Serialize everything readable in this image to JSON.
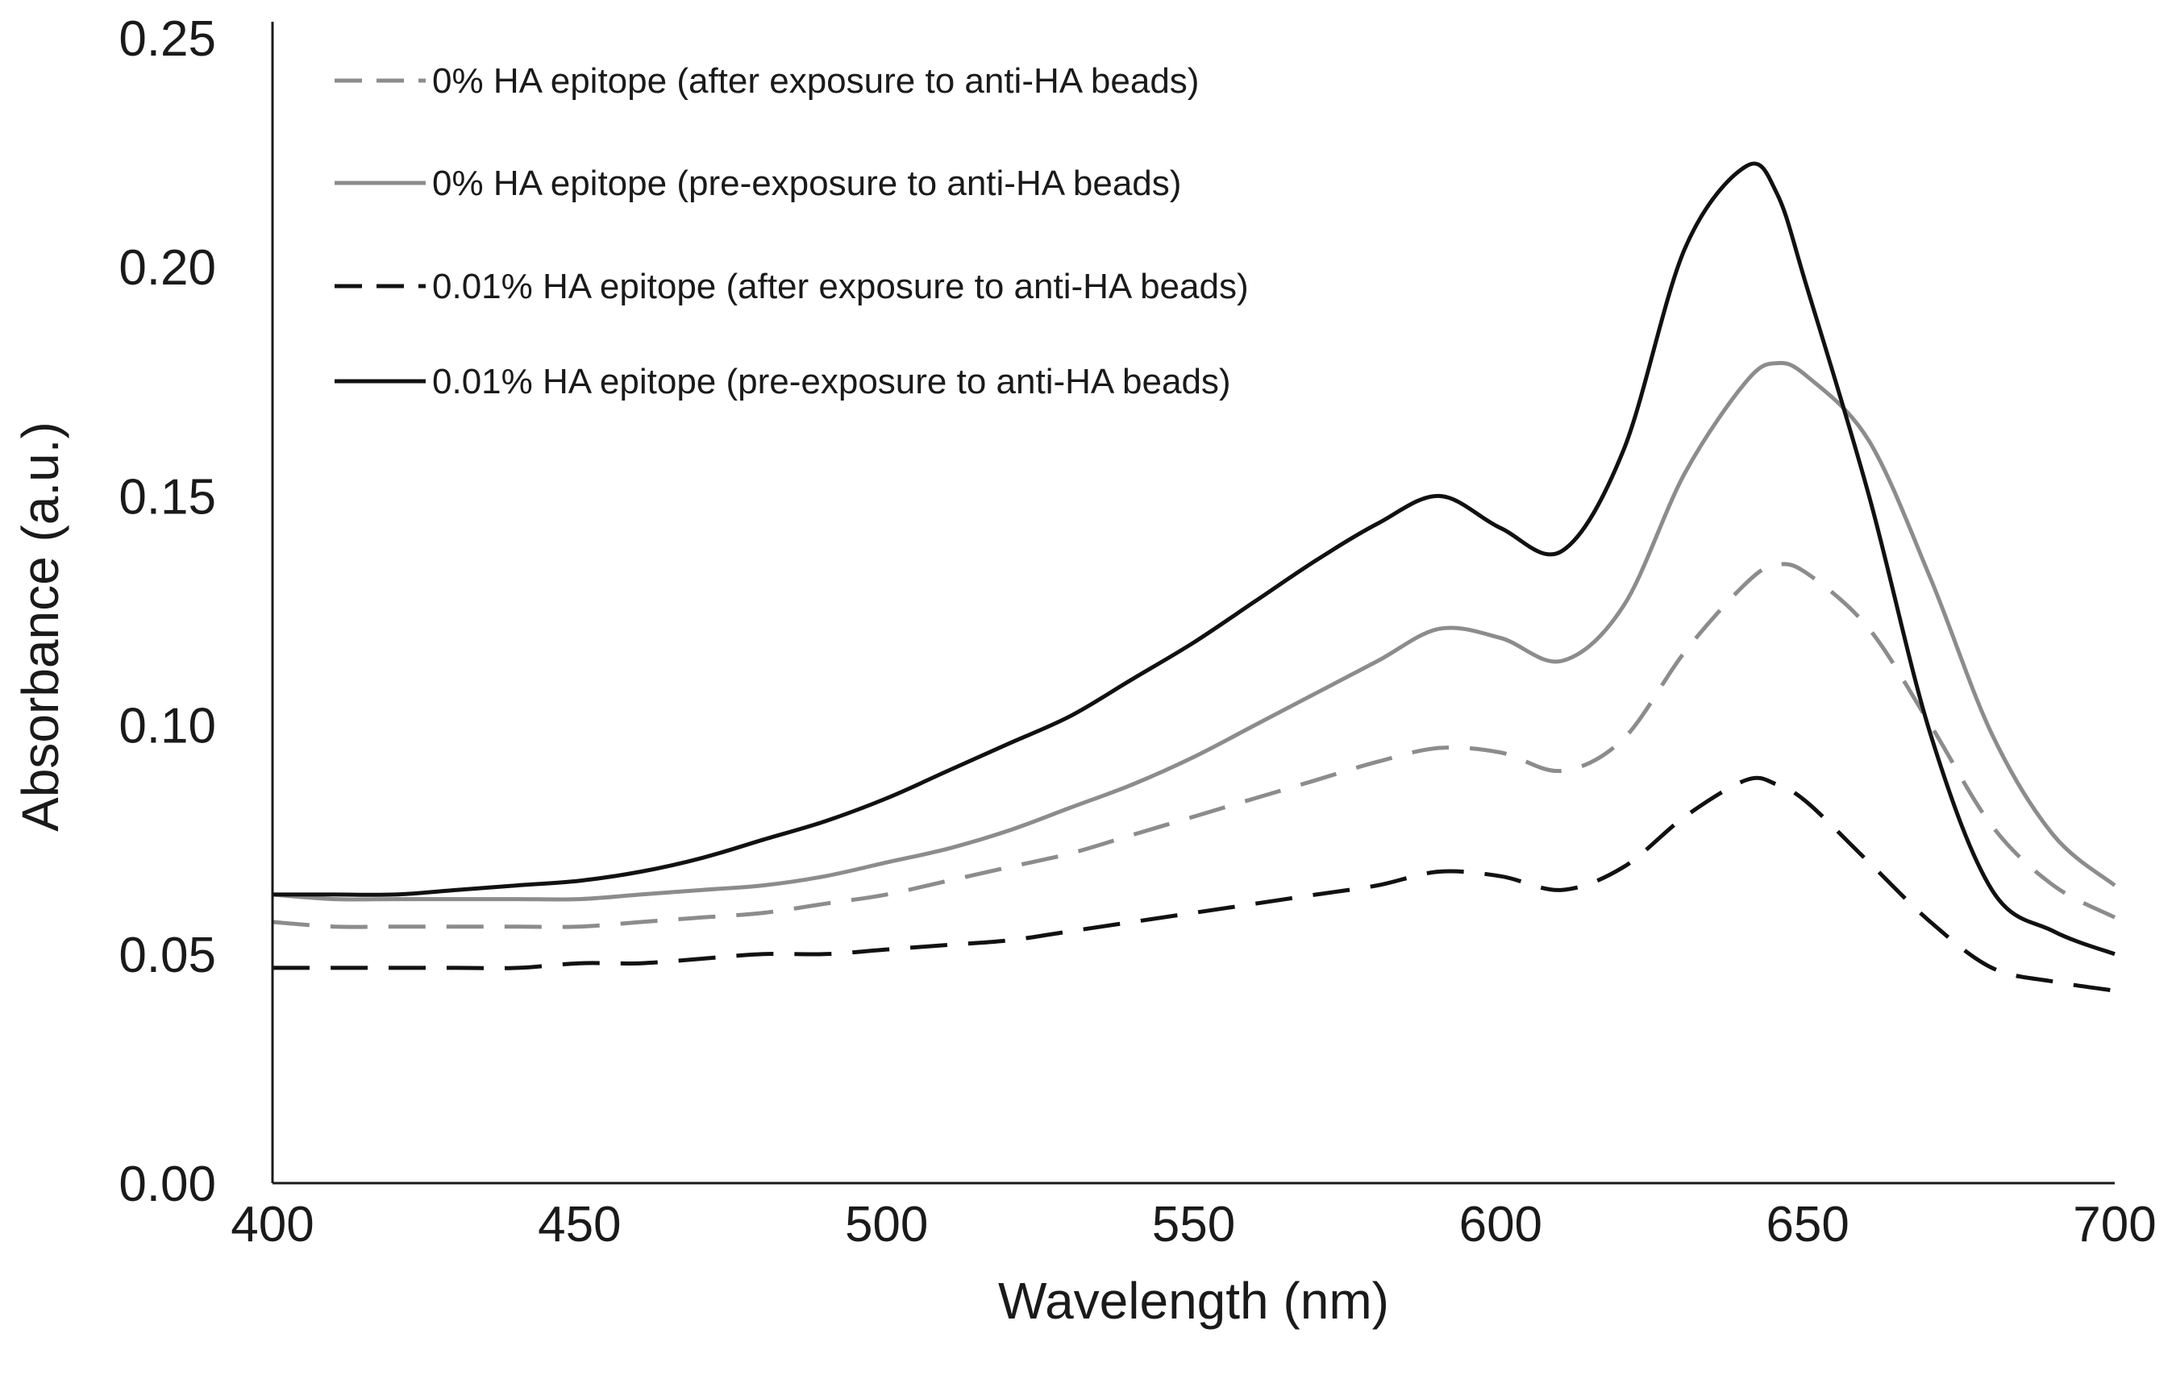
{
  "chart_data": {
    "type": "line",
    "title": "",
    "xlabel": "Wavelength (nm)",
    "ylabel": "Absorbance (a.u.)",
    "xlim": [
      400,
      700
    ],
    "ylim": [
      0,
      0.25
    ],
    "xticks": [
      "400",
      "450",
      "500",
      "550",
      "600",
      "650",
      "700"
    ],
    "yticks": [
      "0.00",
      "0.05",
      "0.10",
      "0.15",
      "0.20",
      "0.25"
    ],
    "grid": false,
    "legend_position": "top-left",
    "x": [
      400,
      410,
      420,
      430,
      440,
      450,
      460,
      470,
      480,
      490,
      500,
      510,
      520,
      530,
      540,
      550,
      560,
      570,
      580,
      590,
      600,
      610,
      620,
      630,
      640,
      645,
      650,
      660,
      670,
      680,
      690,
      700
    ],
    "series": [
      {
        "name": "0% HA epitope (after exposure to anti-HA beads)",
        "color": "#8c8c8c",
        "dash": "dashed",
        "values": [
          0.057,
          0.056,
          0.056,
          0.056,
          0.056,
          0.056,
          0.057,
          0.058,
          0.059,
          0.061,
          0.063,
          0.066,
          0.069,
          0.072,
          0.076,
          0.08,
          0.084,
          0.088,
          0.092,
          0.095,
          0.094,
          0.09,
          0.097,
          0.116,
          0.131,
          0.135,
          0.133,
          0.121,
          0.1,
          0.078,
          0.065,
          0.058
        ]
      },
      {
        "name": "0% HA epitope (pre-exposure to anti-HA beads)",
        "color": "#8c8c8c",
        "dash": "solid",
        "values": [
          0.063,
          0.062,
          0.062,
          0.062,
          0.062,
          0.062,
          0.063,
          0.064,
          0.065,
          0.067,
          0.07,
          0.073,
          0.077,
          0.082,
          0.087,
          0.093,
          0.1,
          0.107,
          0.114,
          0.121,
          0.119,
          0.114,
          0.126,
          0.155,
          0.175,
          0.179,
          0.176,
          0.162,
          0.132,
          0.098,
          0.076,
          0.065
        ]
      },
      {
        "name": "0.01% HA epitope (after exposure to anti-HA beads)",
        "color": "#111111",
        "dash": "dashed",
        "values": [
          0.047,
          0.047,
          0.047,
          0.047,
          0.047,
          0.048,
          0.048,
          0.049,
          0.05,
          0.05,
          0.051,
          0.052,
          0.053,
          0.055,
          0.057,
          0.059,
          0.061,
          0.063,
          0.065,
          0.068,
          0.067,
          0.064,
          0.069,
          0.08,
          0.088,
          0.087,
          0.083,
          0.07,
          0.057,
          0.047,
          0.044,
          0.042
        ]
      },
      {
        "name": "0.01% HA epitope (pre-exposure to anti-HA beads)",
        "color": "#111111",
        "dash": "solid",
        "values": [
          0.063,
          0.063,
          0.063,
          0.064,
          0.065,
          0.066,
          0.068,
          0.071,
          0.075,
          0.079,
          0.084,
          0.09,
          0.096,
          0.102,
          0.11,
          0.118,
          0.127,
          0.136,
          0.144,
          0.15,
          0.143,
          0.138,
          0.16,
          0.204,
          0.222,
          0.216,
          0.195,
          0.15,
          0.098,
          0.064,
          0.055,
          0.05
        ]
      }
    ]
  }
}
